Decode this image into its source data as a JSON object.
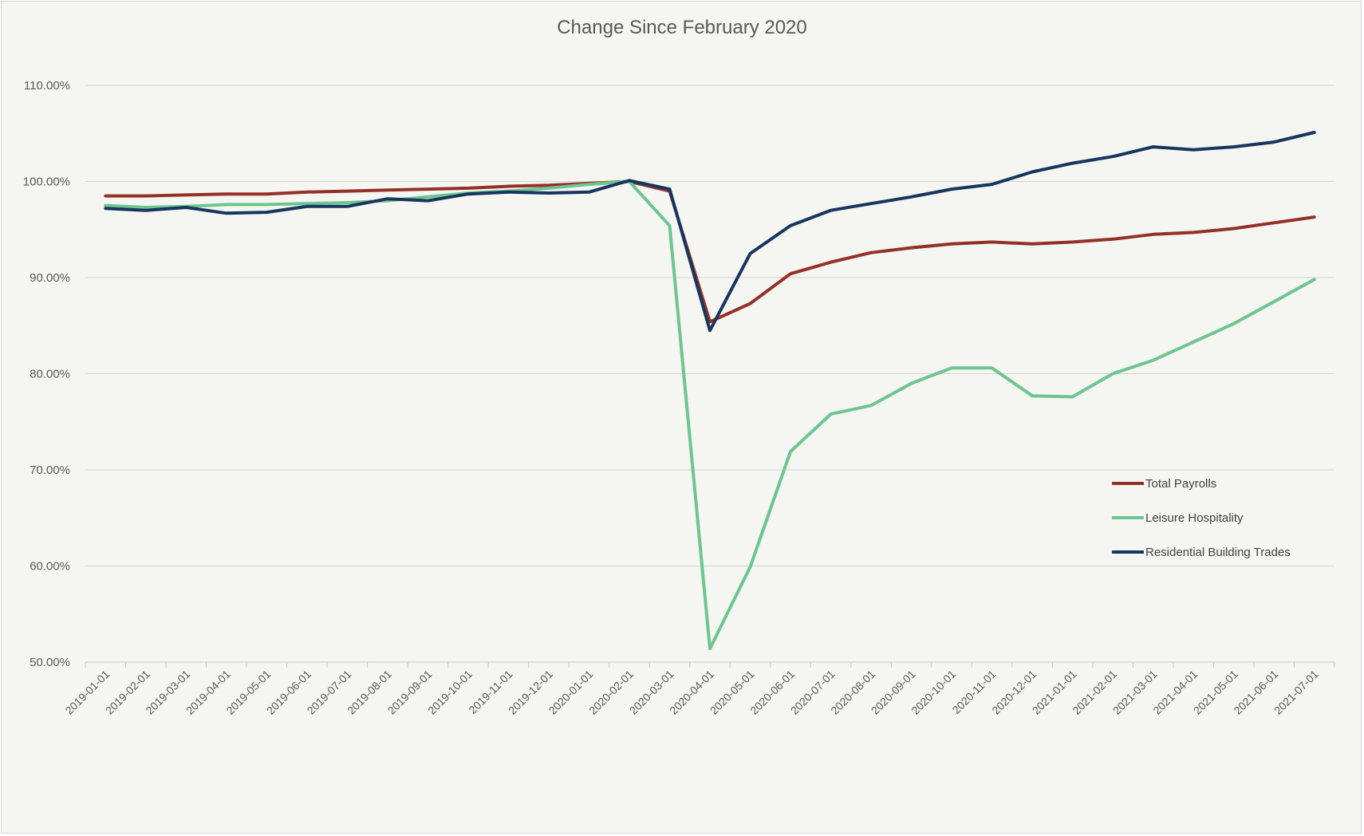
{
  "chart_data": {
    "type": "line",
    "title": "Change Since February 2020",
    "xlabel": "",
    "ylabel": "",
    "ylim": [
      0.5,
      1.1
    ],
    "yticks": [
      "50.00%",
      "60.00%",
      "70.00%",
      "80.00%",
      "90.00%",
      "100.00%",
      "110.00%"
    ],
    "grid": true,
    "legend_position": "bottom-right",
    "categories": [
      "2019-01-01",
      "2019-02-01",
      "2019-03-01",
      "2019-04-01",
      "2019-05-01",
      "2019-06-01",
      "2019-07-01",
      "2019-08-01",
      "2019-09-01",
      "2019-10-01",
      "2019-11-01",
      "2019-12-01",
      "2020-01-01",
      "2020-02-01",
      "2020-03-01",
      "2020-04-01",
      "2020-05-01",
      "2020-06-01",
      "2020-07-01",
      "2020-08-01",
      "2020-09-01",
      "2020-10-01",
      "2020-11-01",
      "2020-12-01",
      "2021-01-01",
      "2021-02-01",
      "2021-03-01",
      "2021-04-01",
      "2021-05-01",
      "2021-06-01",
      "2021-07-01"
    ],
    "series": [
      {
        "name": "Total Payrolls",
        "color": "#943126",
        "values": [
          0.985,
          0.985,
          0.986,
          0.987,
          0.987,
          0.989,
          0.99,
          0.991,
          0.992,
          0.993,
          0.995,
          0.996,
          0.998,
          1.0,
          0.99,
          0.854,
          0.873,
          0.904,
          0.916,
          0.926,
          0.931,
          0.935,
          0.937,
          0.935,
          0.937,
          0.94,
          0.945,
          0.947,
          0.951,
          0.957,
          0.963
        ]
      },
      {
        "name": "Leisure Hospitality",
        "color": "#6dc58f",
        "values": [
          0.975,
          0.973,
          0.974,
          0.976,
          0.976,
          0.977,
          0.978,
          0.98,
          0.984,
          0.988,
          0.99,
          0.993,
          0.997,
          1.0,
          0.954,
          0.514,
          0.599,
          0.719,
          0.758,
          0.767,
          0.79,
          0.806,
          0.806,
          0.777,
          0.776,
          0.8,
          0.814,
          0.833,
          0.852,
          0.875,
          0.898
        ]
      },
      {
        "name": "Residential Building Trades",
        "color": "#17365d",
        "values": [
          0.972,
          0.97,
          0.973,
          0.967,
          0.968,
          0.974,
          0.974,
          0.982,
          0.98,
          0.987,
          0.989,
          0.988,
          0.989,
          1.001,
          0.992,
          0.845,
          0.925,
          0.954,
          0.97,
          0.977,
          0.984,
          0.992,
          0.997,
          1.01,
          1.019,
          1.026,
          1.036,
          1.033,
          1.036,
          1.041,
          1.051
        ]
      }
    ]
  }
}
